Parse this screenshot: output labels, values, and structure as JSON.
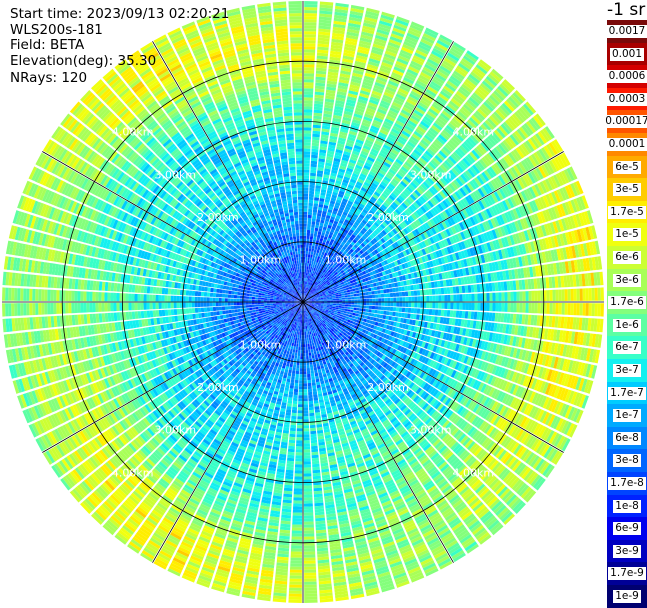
{
  "info": {
    "start_time": "Start time: 2023/09/13 02:20:21",
    "instrument": "WLS200s-181",
    "field": "Field: BETA",
    "elevation": "Elevation(deg): 35.30",
    "nrays": "NRays: 120"
  },
  "colorbar": {
    "unit_label": "-1 sr",
    "ticks": [
      "0.0017",
      "0.001",
      "0.0006",
      "0.0003",
      "0.00017",
      "0.0001",
      "6e-5",
      "3e-5",
      "1.7e-5",
      "1e-5",
      "6e-6",
      "3e-6",
      "1.7e-6",
      "1e-6",
      "6e-7",
      "3e-7",
      "1.7e-7",
      "1e-7",
      "6e-8",
      "3e-8",
      "1.7e-8",
      "1e-8",
      "6e-9",
      "3e-9",
      "1.7e-9",
      "1e-9"
    ],
    "colors": [
      "#7a0a0a",
      "#a80000",
      "#d40000",
      "#ff1a00",
      "#ff5500",
      "#ff8800",
      "#ffaa00",
      "#ffcc00",
      "#ffee00",
      "#f0ff10",
      "#ccff33",
      "#a8ff58",
      "#84ff7c",
      "#5cffa3",
      "#38ffc8",
      "#14f0f0",
      "#00ccff",
      "#00aaff",
      "#0088ff",
      "#0066ff",
      "#0044ff",
      "#0022ff",
      "#0000ee",
      "#0000c0",
      "#000096",
      "#000070"
    ]
  },
  "chart_data": {
    "type": "heatmap",
    "projection": "polar (PPI scan)",
    "nrays": 120,
    "elevation_deg": 35.3,
    "range_rings_km": [
      1,
      2,
      3,
      4
    ],
    "range_ring_labels": [
      "1.00km",
      "2.00km",
      "3.00km",
      "4.00km"
    ],
    "max_range_km": 5.0,
    "color_scale": "log",
    "value_range": [
      1e-09,
      0.0017
    ],
    "radial_profile_log10": [
      {
        "range_km": 0.0,
        "value": -7.8
      },
      {
        "range_km": 1.0,
        "value": -7.4
      },
      {
        "range_km": 2.0,
        "value": -6.6
      },
      {
        "range_km": 3.0,
        "value": -6.3
      },
      {
        "range_km": 3.5,
        "value": -6.0
      },
      {
        "range_km": 4.0,
        "value": -5.5
      },
      {
        "range_km": 4.5,
        "value": -5.3
      },
      {
        "range_km": 5.0,
        "value": -5.5
      }
    ],
    "grid": true
  }
}
